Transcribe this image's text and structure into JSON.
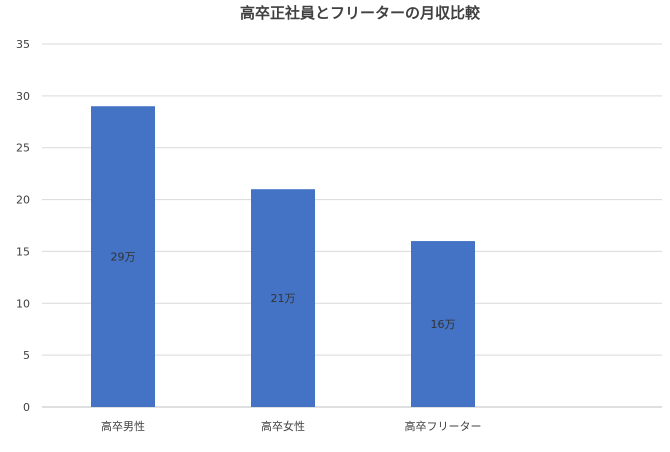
{
  "chart_data": {
    "type": "bar",
    "title": "高卒正社員とフリーターの月収比較",
    "categories": [
      "高卒男性",
      "高卒女性",
      "高卒フリーター"
    ],
    "values": [
      29,
      21,
      16
    ],
    "data_labels": [
      "29万",
      "21万",
      "16万"
    ],
    "y_ticks": [
      "0",
      "5",
      "10",
      "15",
      "20",
      "25",
      "30",
      "35"
    ],
    "ylim": [
      0,
      35
    ],
    "grid": true,
    "legend": "none",
    "bar_color": "#4472C4"
  }
}
